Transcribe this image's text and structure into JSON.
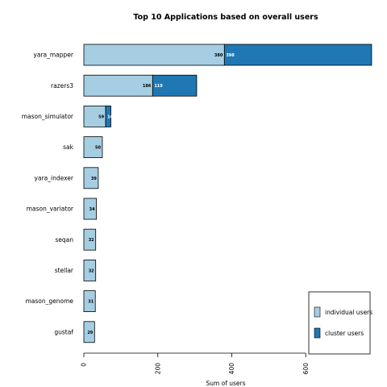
{
  "chart_data": {
    "type": "bar",
    "orientation": "horizontal",
    "stacked": true,
    "title": "Top 10 Applications based on overall users",
    "xlabel": "Sum of users",
    "ylabel": "",
    "xlim": [
      0,
      776
    ],
    "xticks": [
      0,
      200,
      400,
      600
    ],
    "categories": [
      "yara_mapper",
      "razers3",
      "mason_simulator",
      "sak",
      "yara_indexer",
      "mason_variator",
      "seqan",
      "stellar",
      "mason_genome",
      "gustaf"
    ],
    "series": [
      {
        "name": "individual users",
        "color": "#a6cee3",
        "values": [
          380,
          186,
          59,
          50,
          39,
          34,
          32,
          32,
          31,
          29
        ]
      },
      {
        "name": "cluster users",
        "color": "#1f78b4",
        "values": [
          398,
          119,
          14,
          0,
          0,
          0,
          0,
          0,
          0,
          0
        ]
      }
    ],
    "data_labels": {
      "individual users": [
        "380",
        "186",
        "59",
        "50",
        "39",
        "34",
        "32",
        "32",
        "31",
        "29"
      ],
      "cluster users": [
        "398",
        "119",
        "14",
        "",
        "",
        "",
        "",
        "",
        "",
        ""
      ]
    },
    "legend_position": "bottom-right",
    "grid": false
  }
}
